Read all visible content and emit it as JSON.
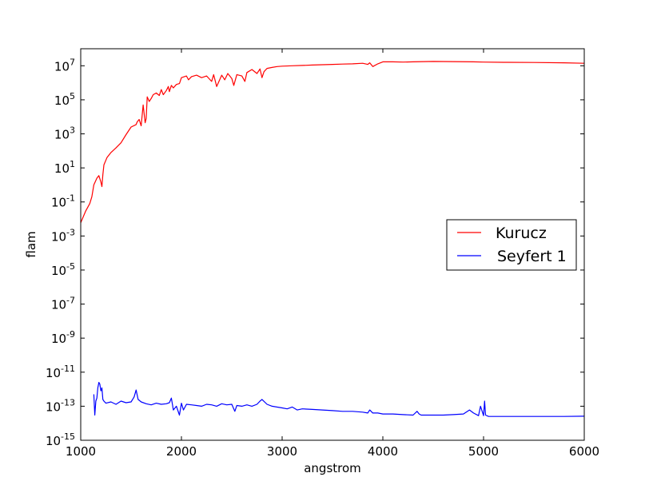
{
  "chart_data": {
    "type": "line",
    "title": "",
    "xlabel": "angstrom",
    "ylabel": "flam",
    "xlim": [
      1000,
      6000
    ],
    "ylim_exponent": [
      -15,
      8
    ],
    "yscale": "log",
    "grid": false,
    "legend_position": "center-right",
    "x_ticks": [
      1000,
      2000,
      3000,
      4000,
      5000,
      6000
    ],
    "y_ticks": [
      {
        "base": "10",
        "exp": "-15",
        "value_exp": -15
      },
      {
        "base": "10",
        "exp": "-13",
        "value_exp": -13
      },
      {
        "base": "10",
        "exp": "-11",
        "value_exp": -11
      },
      {
        "base": "10",
        "exp": "-9",
        "value_exp": -9
      },
      {
        "base": "10",
        "exp": "-7",
        "value_exp": -7
      },
      {
        "base": "10",
        "exp": "-5",
        "value_exp": -5
      },
      {
        "base": "10",
        "exp": "-3",
        "value_exp": -3
      },
      {
        "base": "10",
        "exp": "-1",
        "value_exp": -1
      },
      {
        "base": "10",
        "exp": "1",
        "value_exp": 1
      },
      {
        "base": "10",
        "exp": "3",
        "value_exp": 3
      },
      {
        "base": "10",
        "exp": "5",
        "value_exp": 5
      },
      {
        "base": "10",
        "exp": "7",
        "value_exp": 7
      }
    ],
    "series": [
      {
        "name": "Kurucz",
        "color": "#ff0000",
        "x": [
          1000,
          1050,
          1090,
          1110,
          1130,
          1160,
          1180,
          1200,
          1210,
          1220,
          1230,
          1260,
          1300,
          1350,
          1400,
          1450,
          1500,
          1550,
          1560,
          1580,
          1600,
          1620,
          1640,
          1650,
          1660,
          1680,
          1700,
          1720,
          1750,
          1780,
          1800,
          1820,
          1850,
          1870,
          1880,
          1900,
          1920,
          1950,
          1980,
          2000,
          2050,
          2070,
          2100,
          2150,
          2200,
          2250,
          2300,
          2320,
          2350,
          2400,
          2430,
          2460,
          2500,
          2520,
          2550,
          2600,
          2630,
          2650,
          2700,
          2750,
          2780,
          2800,
          2820,
          2850,
          2900,
          2950,
          3000,
          3100,
          3200,
          3300,
          3400,
          3500,
          3600,
          3700,
          3800,
          3850,
          3870,
          3900,
          3950,
          4000,
          4100,
          4200,
          4300,
          4400,
          4500,
          4700,
          4900,
          5000,
          5200,
          5500,
          5800,
          6000
        ],
        "y": [
          0.006,
          0.03,
          0.08,
          0.2,
          1.0,
          2.5,
          3.5,
          1.5,
          0.8,
          4,
          15,
          40,
          80,
          150,
          300,
          900,
          2500,
          3500,
          5000,
          7000,
          3000,
          50000,
          4500,
          8000,
          150000,
          80000,
          120000,
          200000,
          250000,
          180000,
          400000,
          200000,
          350000,
          600000,
          300000,
          700000,
          500000,
          800000,
          900000,
          2000000,
          2500000,
          1500000,
          2300000,
          2800000,
          2000000,
          2500000,
          1200000,
          3000000,
          600000,
          2800000,
          1500000,
          3500000,
          1800000,
          700000,
          3000000,
          2500000,
          1200000,
          4000000,
          6000000,
          3500000,
          6500000,
          2000000,
          4500000,
          7000000,
          8000000,
          9000000,
          9500000,
          10000000,
          10500000,
          11000000,
          11500000,
          12000000,
          12500000,
          13000000,
          14000000,
          12000000,
          15000000,
          9000000,
          13000000,
          17000000,
          17000000,
          16500000,
          17000000,
          17500000,
          18000000,
          17500000,
          17000000,
          16500000,
          16000000,
          15500000,
          15000000,
          14000000
        ]
      },
      {
        "name": "Seyfert 1",
        "color": "#0000ff",
        "x": [
          1130,
          1140,
          1150,
          1160,
          1170,
          1180,
          1190,
          1200,
          1210,
          1220,
          1230,
          1250,
          1300,
          1350,
          1400,
          1450,
          1500,
          1530,
          1550,
          1570,
          1600,
          1650,
          1700,
          1750,
          1800,
          1850,
          1880,
          1900,
          1920,
          1950,
          1980,
          2000,
          2020,
          2050,
          2100,
          2150,
          2200,
          2250,
          2300,
          2350,
          2400,
          2450,
          2500,
          2530,
          2550,
          2600,
          2650,
          2700,
          2750,
          2780,
          2800,
          2850,
          2900,
          3000,
          3050,
          3100,
          3150,
          3200,
          3300,
          3400,
          3500,
          3600,
          3700,
          3800,
          3850,
          3870,
          3900,
          3950,
          4000,
          4100,
          4200,
          4300,
          4340,
          4360,
          4380,
          4400,
          4500,
          4600,
          4700,
          4800,
          4860,
          4900,
          4950,
          4970,
          5000,
          5010,
          5020,
          5050,
          5100,
          5200,
          5400,
          5600,
          5800,
          6000
        ],
        "y": [
          5e-13,
          3e-14,
          2e-13,
          3e-13,
          1.2e-12,
          2.5e-12,
          2e-12,
          8e-13,
          1.2e-12,
          2.5e-13,
          2e-13,
          1.5e-13,
          1.8e-13,
          1.3e-13,
          2e-13,
          1.6e-13,
          1.8e-13,
          3.5e-13,
          9e-13,
          2.5e-13,
          1.8e-13,
          1.4e-13,
          1.2e-13,
          1.5e-13,
          1.3e-13,
          1.4e-13,
          1.6e-13,
          3e-13,
          6e-14,
          1e-13,
          3e-14,
          1.5e-13,
          6e-14,
          1.3e-13,
          1.2e-13,
          1.1e-13,
          1e-13,
          1.3e-13,
          1.2e-13,
          1e-13,
          1.4e-13,
          1.2e-13,
          1.3e-13,
          5e-14,
          1.1e-13,
          1e-13,
          1.2e-13,
          1e-13,
          1.3e-13,
          2e-13,
          2.5e-13,
          1.3e-13,
          1e-13,
          8e-14,
          7e-14,
          9e-14,
          6e-14,
          7e-14,
          6.5e-14,
          6e-14,
          5.5e-14,
          5e-14,
          5e-14,
          4.5e-14,
          4e-14,
          6e-14,
          4e-14,
          4e-14,
          3.5e-14,
          3.5e-14,
          3.2e-14,
          3e-14,
          5e-14,
          3.5e-14,
          3e-14,
          3e-14,
          3e-14,
          3e-14,
          3.2e-14,
          3.5e-14,
          6e-14,
          4e-14,
          2.8e-14,
          1e-13,
          2.8e-14,
          2e-13,
          3e-14,
          2.5e-14,
          2.5e-14,
          2.5e-14,
          2.5e-14,
          2.5e-14,
          2.5e-14,
          2.6e-14
        ]
      }
    ]
  }
}
